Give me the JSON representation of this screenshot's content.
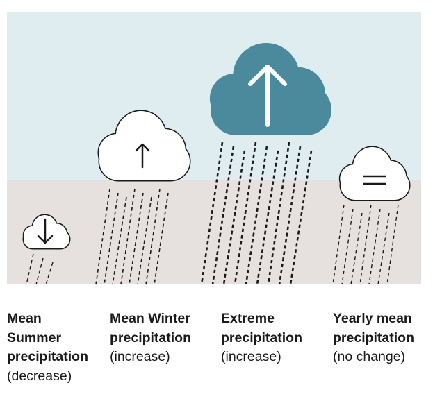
{
  "captions": [
    {
      "title": [
        "Mean",
        "Summer",
        "precipitation"
      ],
      "note": "(decrease)"
    },
    {
      "title": [
        "Mean Winter",
        "precipitation"
      ],
      "note": "(increase)"
    },
    {
      "title": [
        "Extreme",
        "precipitation"
      ],
      "note": "(increase)"
    },
    {
      "title": [
        "Yearly mean",
        "precipitation"
      ],
      "note": "(no change)"
    }
  ]
}
